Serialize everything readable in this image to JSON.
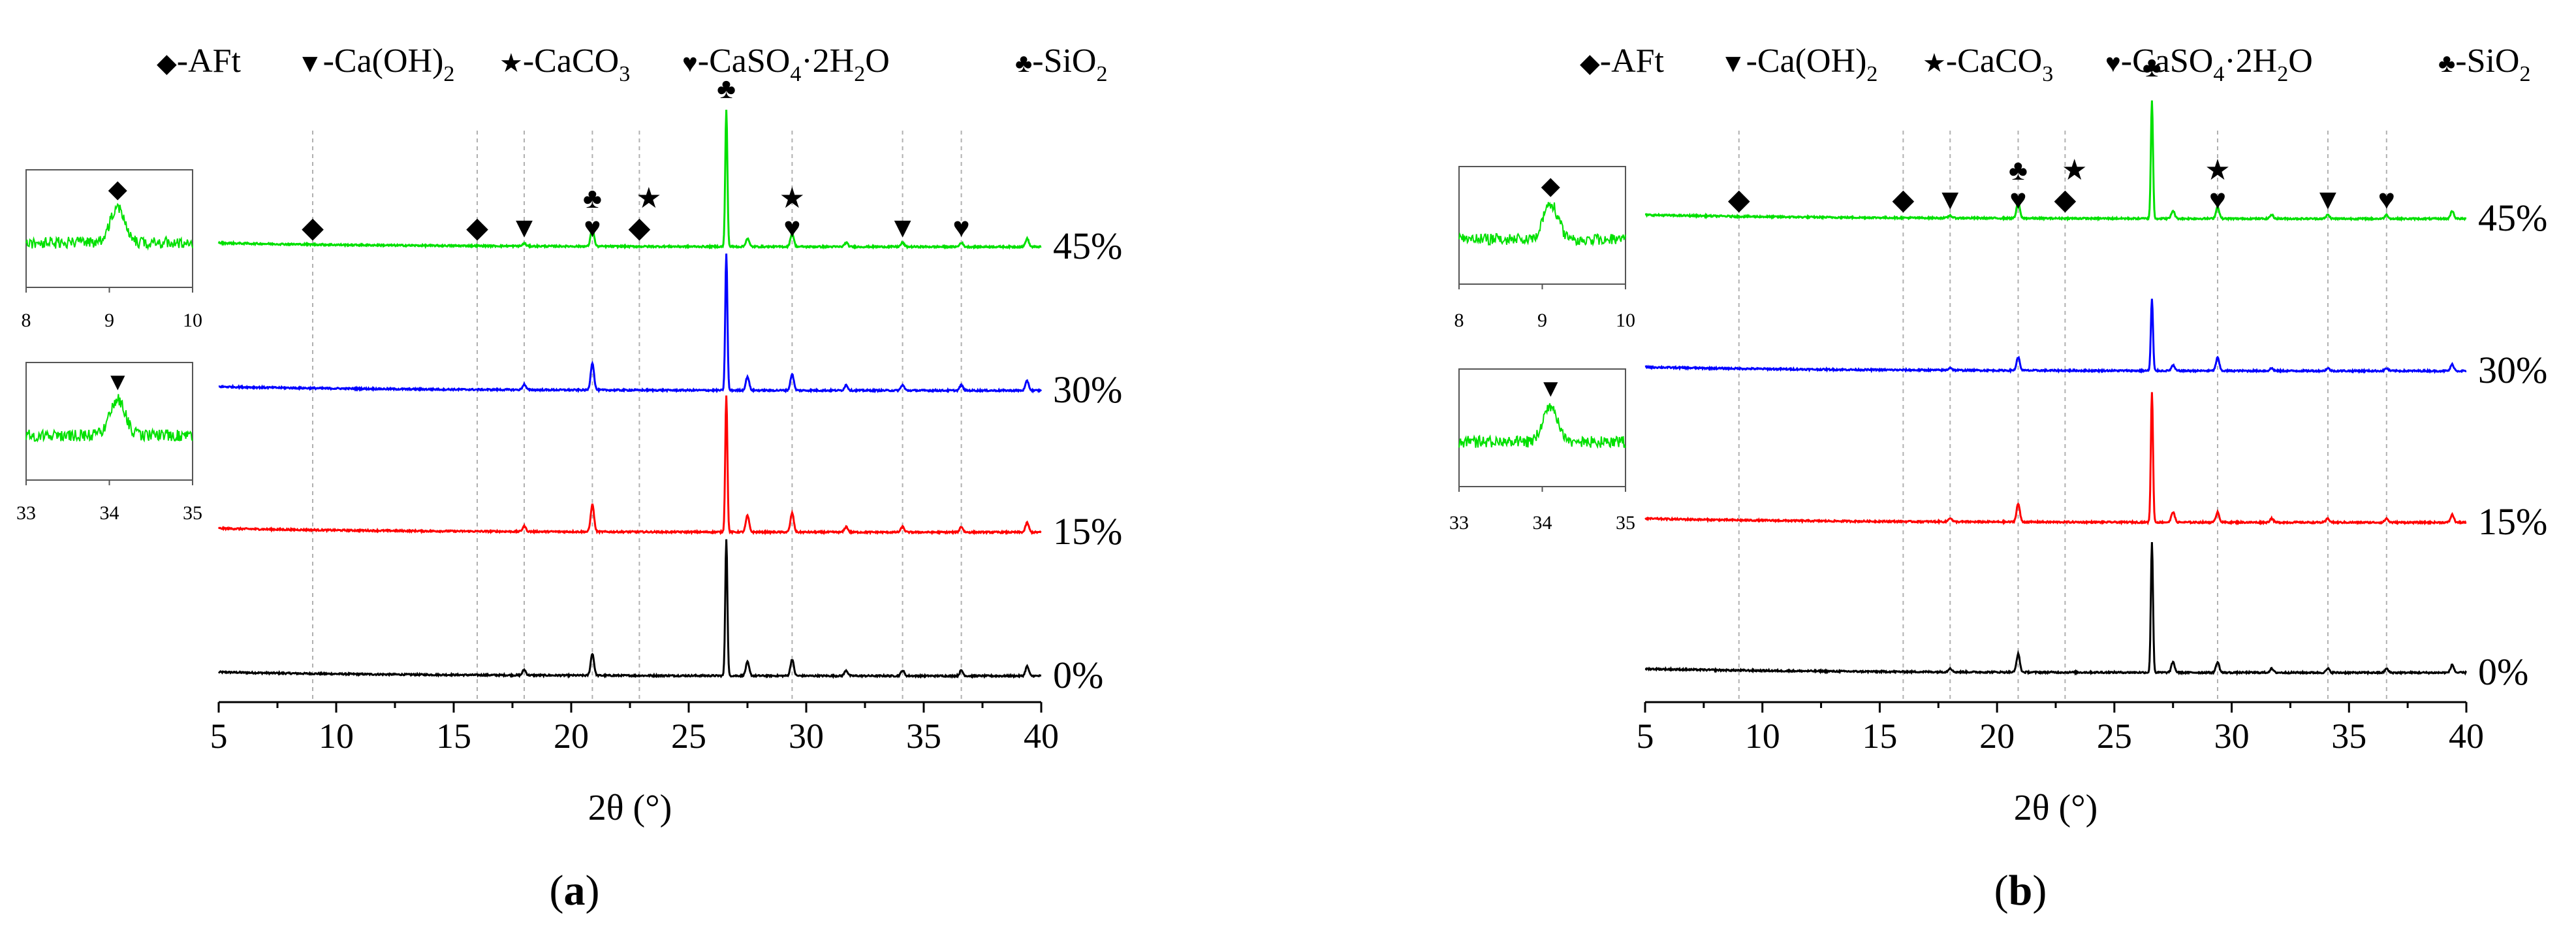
{
  "legend_items": [
    {
      "symbol": "◆",
      "text": "-AFt"
    },
    {
      "symbol": "▼",
      "text": "-Ca(OH)",
      "sub": "2"
    },
    {
      "symbol": "★",
      "text": "-CaCO",
      "sub": "3"
    },
    {
      "symbol": "♥",
      "text": "-CaSO",
      "sub": "4",
      "after": "·2H",
      "sub2": "2",
      "after2": "O"
    },
    {
      "symbol": "♣",
      "text": "-SiO",
      "sub": "2"
    }
  ],
  "colors": {
    "s0": "#000000",
    "s15": "#ff0000",
    "s30": "#0000ff",
    "s45": "#00e000",
    "refline": "#b0b0b0"
  },
  "chart_data": [
    {
      "type": "line",
      "panel_label": "(a)",
      "panel_letter": "a",
      "xlabel": "2θ (°)",
      "ylabel": "",
      "xlim": [
        5,
        40
      ],
      "xticks": [
        5,
        10,
        15,
        20,
        25,
        30,
        35,
        40
      ],
      "tick_labels": [
        "5",
        "10",
        "15",
        "20",
        "25",
        "30",
        "35",
        "40"
      ],
      "reference_lines_2theta": [
        9.0,
        16.0,
        18.0,
        20.9,
        22.9,
        29.4,
        34.1,
        36.6
      ],
      "peaks_2theta": [
        {
          "x": 20.9,
          "h": [
            0.16,
            0.2,
            0.2,
            0.14
          ]
        },
        {
          "x": 26.6,
          "h": [
            1.0,
            1.0,
            1.0,
            1.0
          ]
        },
        {
          "x": 27.5,
          "h": [
            0.1,
            0.12,
            0.1,
            0.06
          ]
        },
        {
          "x": 29.4,
          "h": [
            0.12,
            0.14,
            0.12,
            0.1
          ]
        },
        {
          "x": 18.0,
          "h": [
            0.04,
            0.04,
            0.04,
            0.02
          ]
        },
        {
          "x": 31.7,
          "h": [
            0.04,
            0.04,
            0.04,
            0.03
          ]
        },
        {
          "x": 34.1,
          "h": [
            0.04,
            0.04,
            0.04,
            0.03
          ]
        },
        {
          "x": 36.6,
          "h": [
            0.04,
            0.04,
            0.04,
            0.03
          ]
        },
        {
          "x": 39.4,
          "h": [
            0.07,
            0.07,
            0.07,
            0.06
          ]
        }
      ],
      "series": [
        {
          "name": "0%",
          "label": "0%",
          "color_key": "s0"
        },
        {
          "name": "15%",
          "label": "15%",
          "color_key": "s15"
        },
        {
          "name": "30%",
          "label": "30%",
          "color_key": "s30"
        },
        {
          "name": "45%",
          "label": "45%",
          "color_key": "s45"
        }
      ],
      "peak_markers": [
        {
          "x": 9.0,
          "symbol": "◆"
        },
        {
          "x": 16.0,
          "symbol": "◆"
        },
        {
          "x": 18.0,
          "symbol": "▼"
        },
        {
          "x": 20.9,
          "symbol": "♥"
        },
        {
          "x": 20.9,
          "symbol": "♣",
          "level": 2
        },
        {
          "x": 22.9,
          "symbol": "◆"
        },
        {
          "x": 23.3,
          "symbol": "★",
          "level": 2
        },
        {
          "x": 26.6,
          "symbol": "♣",
          "level": 3
        },
        {
          "x": 29.4,
          "symbol": "♥"
        },
        {
          "x": 29.4,
          "symbol": "★",
          "level": 2
        },
        {
          "x": 34.1,
          "symbol": "▼"
        },
        {
          "x": 36.6,
          "symbol": "♥"
        }
      ],
      "insets": [
        {
          "range": [
            8,
            10
          ],
          "ticks": [
            "8",
            "9",
            "10"
          ],
          "peak": 9.1,
          "marker": "◆"
        },
        {
          "range": [
            33,
            35
          ],
          "ticks": [
            "33",
            "34",
            "35"
          ],
          "peak": 34.1,
          "marker": "▼"
        }
      ]
    },
    {
      "type": "line",
      "panel_label": "(b)",
      "panel_letter": "b",
      "xlabel": "2θ (°)",
      "ylabel": "",
      "xlim": [
        5,
        40
      ],
      "xticks": [
        5,
        10,
        15,
        20,
        25,
        30,
        35,
        40
      ],
      "tick_labels": [
        "5",
        "10",
        "15",
        "20",
        "25",
        "30",
        "35",
        "40"
      ],
      "reference_lines_2theta": [
        9.0,
        16.0,
        18.0,
        20.9,
        22.9,
        29.4,
        34.1,
        36.6
      ],
      "peaks_2theta": [
        {
          "x": 20.9,
          "h": [
            0.14,
            0.14,
            0.1,
            0.12
          ]
        },
        {
          "x": 26.6,
          "h": [
            1.0,
            1.0,
            0.55,
            0.9
          ]
        },
        {
          "x": 27.5,
          "h": [
            0.08,
            0.08,
            0.04,
            0.06
          ]
        },
        {
          "x": 29.4,
          "h": [
            0.08,
            0.08,
            0.1,
            0.09
          ]
        },
        {
          "x": 18.0,
          "h": [
            0.03,
            0.03,
            0.02,
            0.02
          ]
        },
        {
          "x": 31.7,
          "h": [
            0.03,
            0.03,
            0.02,
            0.03
          ]
        },
        {
          "x": 34.1,
          "h": [
            0.03,
            0.03,
            0.02,
            0.03
          ]
        },
        {
          "x": 36.6,
          "h": [
            0.03,
            0.03,
            0.02,
            0.03
          ]
        },
        {
          "x": 39.4,
          "h": [
            0.06,
            0.06,
            0.05,
            0.06
          ]
        }
      ],
      "series": [
        {
          "name": "0%",
          "label": "0%",
          "color_key": "s0"
        },
        {
          "name": "15%",
          "label": "15%",
          "color_key": "s15"
        },
        {
          "name": "30%",
          "label": "30%",
          "color_key": "s30"
        },
        {
          "name": "45%",
          "label": "45%",
          "color_key": "s45"
        }
      ],
      "peak_markers": [
        {
          "x": 9.0,
          "symbol": "◆"
        },
        {
          "x": 16.0,
          "symbol": "◆"
        },
        {
          "x": 18.0,
          "symbol": "▼"
        },
        {
          "x": 20.9,
          "symbol": "♥"
        },
        {
          "x": 20.9,
          "symbol": "♣",
          "level": 2
        },
        {
          "x": 22.9,
          "symbol": "◆"
        },
        {
          "x": 23.3,
          "symbol": "★",
          "level": 2
        },
        {
          "x": 26.6,
          "symbol": "♣",
          "level": 3
        },
        {
          "x": 29.4,
          "symbol": "♥"
        },
        {
          "x": 29.4,
          "symbol": "★",
          "level": 2
        },
        {
          "x": 34.1,
          "symbol": "▼"
        },
        {
          "x": 36.6,
          "symbol": "♥"
        }
      ],
      "insets": [
        {
          "range": [
            8,
            10
          ],
          "ticks": [
            "8",
            "9",
            "10"
          ],
          "peak": 9.1,
          "marker": "◆"
        },
        {
          "range": [
            33,
            35
          ],
          "ticks": [
            "33",
            "34",
            "35"
          ],
          "peak": 34.1,
          "marker": "▼"
        }
      ]
    }
  ]
}
